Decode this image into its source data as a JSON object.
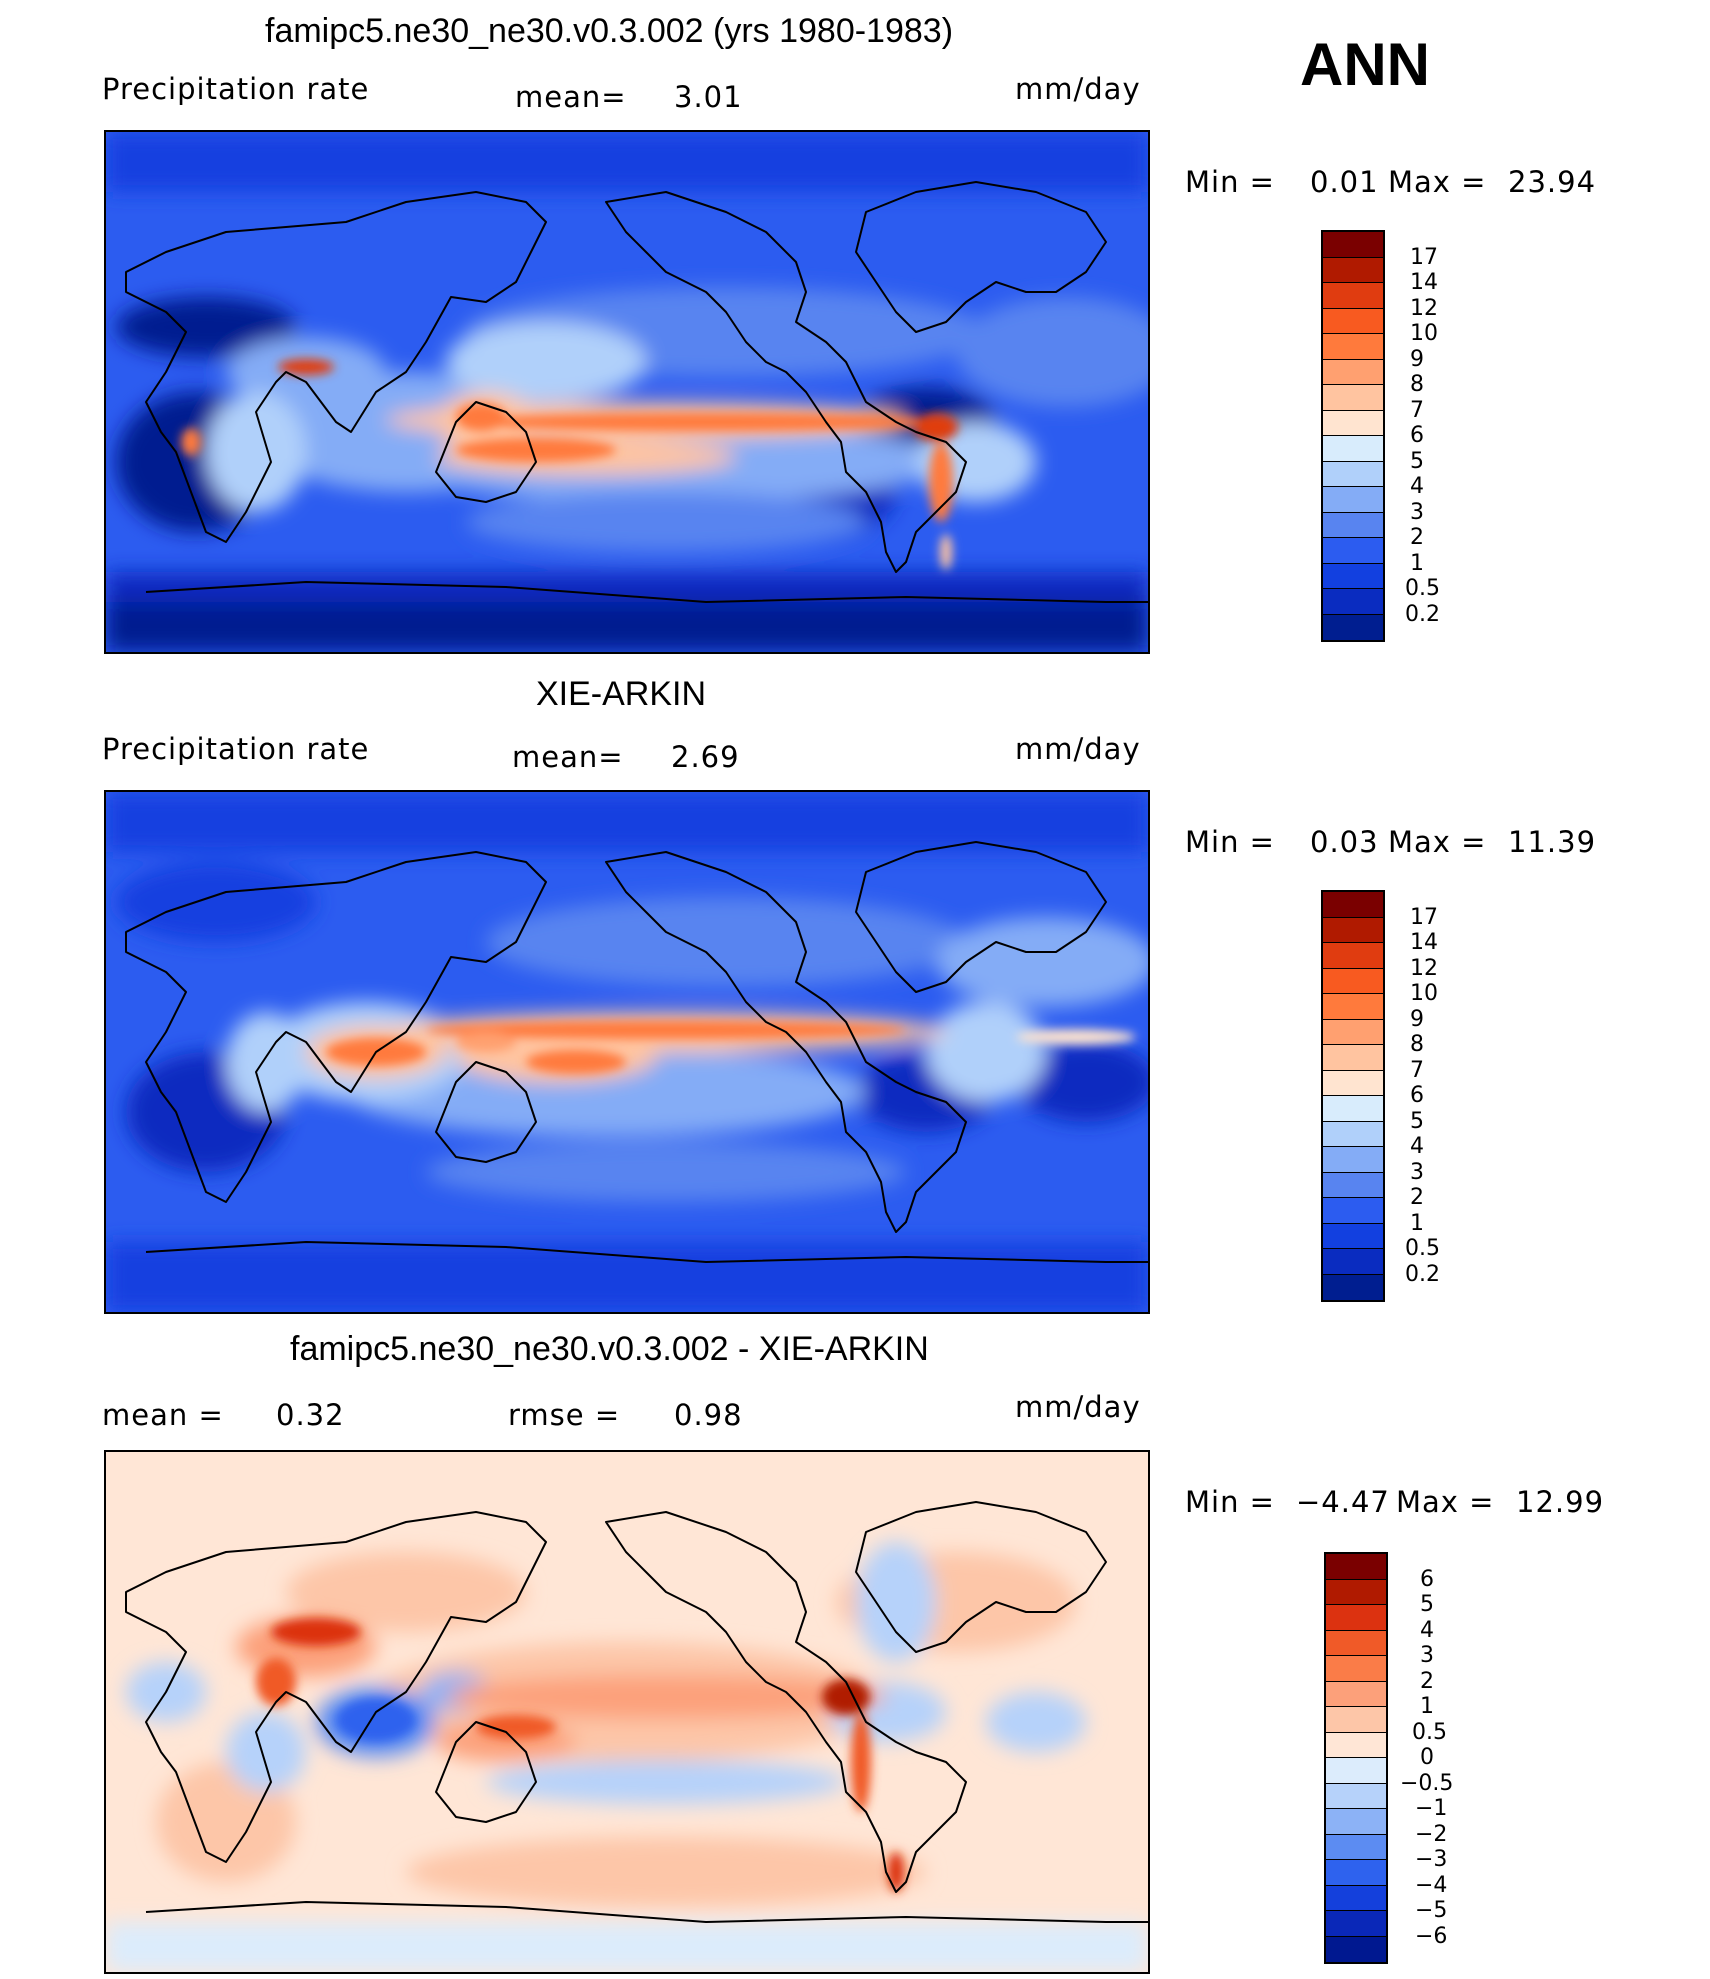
{
  "season": "ANN",
  "units": "mm/day",
  "panels": [
    {
      "title": "famipc5.ne30_ne30.v0.3.002 (yrs 1980-1983)",
      "var_label": "Precipitation  rate",
      "mean_label": "mean=",
      "mean_value": "3.01",
      "min_label": "Min  =",
      "min_value": "0.01",
      "max_label": "Max  =",
      "max_value": "23.94"
    },
    {
      "title": "XIE-ARKIN",
      "var_label": "Precipitation  rate",
      "mean_label": "mean=",
      "mean_value": "2.69",
      "min_label": "Min  =",
      "min_value": "0.03",
      "max_label": "Max  =",
      "max_value": "11.39"
    },
    {
      "title": "famipc5.ne30_ne30.v0.3.002 - XIE-ARKIN",
      "mean_label": "mean  =",
      "mean_value": "0.32",
      "rmse_label": "rmse  =",
      "rmse_value": "0.98",
      "min_label": "Min  =",
      "min_value": "−4.47",
      "max_label": "Max  =",
      "max_value": "12.99"
    }
  ],
  "chart_data": [
    {
      "type": "heatmap",
      "title": "famipc5.ne30_ne30.v0.3.002 (yrs 1980-1983)",
      "variable": "Precipitation  rate",
      "units": "mm/day",
      "mean": 3.01,
      "min": 0.01,
      "max": 23.94,
      "colorbar_levels": [
        "17",
        "14",
        "12",
        "10",
        "9",
        "8",
        "7",
        "6",
        "5",
        "4",
        "3",
        "2",
        "1",
        "0.5",
        "0.2"
      ],
      "colorbar_colors": [
        "#7a0000",
        "#b01a00",
        "#e03c10",
        "#f85a20",
        "#ff7a3c",
        "#ffa070",
        "#ffc4a0",
        "#ffe4d0",
        "#d8ecfc",
        "#b0d0fa",
        "#84acf6",
        "#5884f0",
        "#2c5cf0",
        "#1240e0",
        "#0a2cc0",
        "#001e90"
      ]
    },
    {
      "type": "heatmap",
      "title": "XIE-ARKIN",
      "variable": "Precipitation  rate",
      "units": "mm/day",
      "mean": 2.69,
      "min": 0.03,
      "max": 11.39,
      "colorbar_levels": [
        "17",
        "14",
        "12",
        "10",
        "9",
        "8",
        "7",
        "6",
        "5",
        "4",
        "3",
        "2",
        "1",
        "0.5",
        "0.2"
      ],
      "colorbar_colors": [
        "#7a0000",
        "#b01a00",
        "#e03c10",
        "#f85a20",
        "#ff7a3c",
        "#ffa070",
        "#ffc4a0",
        "#ffe4d0",
        "#d8ecfc",
        "#b0d0fa",
        "#84acf6",
        "#5884f0",
        "#2c5cf0",
        "#1240e0",
        "#0a2cc0",
        "#001e90"
      ]
    },
    {
      "type": "heatmap",
      "title": "famipc5.ne30_ne30.v0.3.002 - XIE-ARKIN",
      "units": "mm/day",
      "mean": 0.32,
      "rmse": 0.98,
      "min": -4.47,
      "max": 12.99,
      "colorbar_levels": [
        "6",
        "5",
        "4",
        "3",
        "2",
        "1",
        "0.5",
        "0",
        "−0.5",
        "−1",
        "−2",
        "−3",
        "−4",
        "−5",
        "−6"
      ],
      "colorbar_colors": [
        "#7a0000",
        "#b01a00",
        "#dc3210",
        "#f05a28",
        "#fa7c48",
        "#fca07a",
        "#fdc6a8",
        "#ffe6d6",
        "#dcecfc",
        "#b6d2fa",
        "#8cb2f6",
        "#5c8cf2",
        "#2e62ee",
        "#1440dc",
        "#0a28b8",
        "#001890"
      ]
    }
  ]
}
